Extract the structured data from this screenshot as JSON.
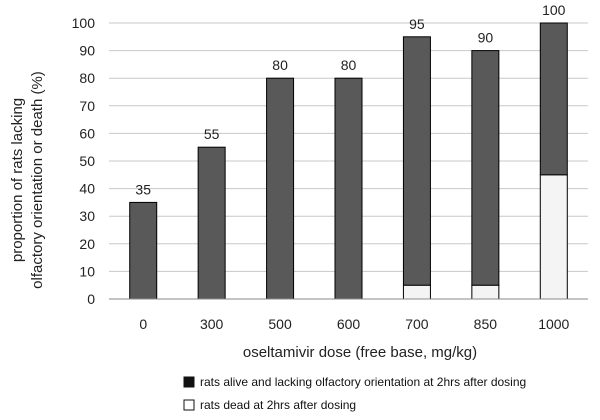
{
  "chart_data": {
    "type": "bar",
    "stacked": true,
    "categories": [
      "0",
      "300",
      "500",
      "600",
      "700",
      "850",
      "1000"
    ],
    "series": [
      {
        "name": "rats dead at 2hrs after dosing",
        "color": "#f4f4f4",
        "values": [
          0,
          0,
          0,
          0,
          5,
          5,
          45
        ]
      },
      {
        "name": "rats alive and lacking olfactory orientation at 2hrs after dosing",
        "color": "#595959",
        "values": [
          35,
          55,
          80,
          80,
          90,
          85,
          55
        ]
      }
    ],
    "totals": [
      35,
      55,
      80,
      80,
      95,
      90,
      100
    ],
    "data_labels": [
      "35",
      "55",
      "80",
      "80",
      "95",
      "90",
      "100"
    ],
    "xlabel": "oseltamivir dose (free base, mg/kg)",
    "ylabel": [
      "proportion of rats lacking",
      "olfactory orientation or death (%)"
    ],
    "ylim": [
      0,
      100
    ],
    "yticks": [
      0,
      10,
      20,
      30,
      40,
      50,
      60,
      70,
      80,
      90,
      100
    ],
    "grid": true,
    "legend_position": "bottom"
  }
}
